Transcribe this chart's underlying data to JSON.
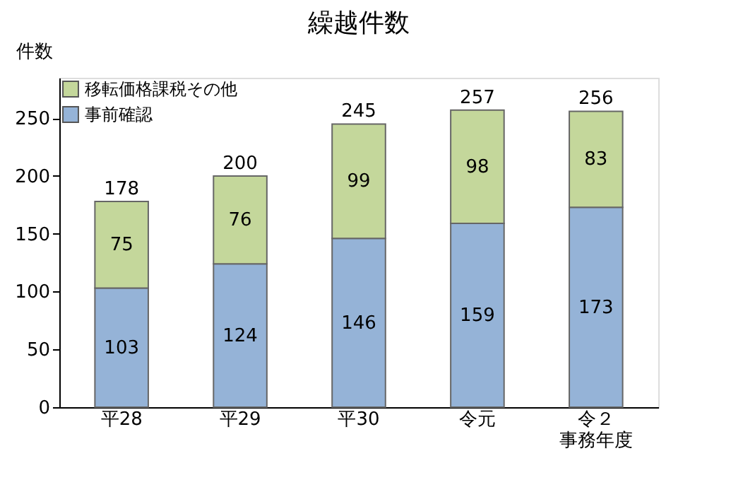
{
  "chart_data": {
    "type": "bar",
    "title": "繰越件数",
    "ylabel": "件数",
    "categories": [
      "平28",
      "平29",
      "平30",
      "令元",
      "令２事務年度"
    ],
    "stacked": true,
    "series": [
      {
        "name": "事前確認",
        "color": "#95b3d7",
        "values": [
          103,
          124,
          146,
          159,
          173
        ]
      },
      {
        "name": "移転価格課税その他",
        "color": "#c4d79b",
        "values": [
          75,
          76,
          99,
          98,
          83
        ]
      }
    ],
    "totals": [
      "178",
      "200",
      "245",
      "257",
      "256"
    ],
    "data_labels": true,
    "ylim": [
      0,
      285
    ],
    "yticks": [
      0,
      50,
      100,
      150,
      200,
      250
    ],
    "grid": false,
    "legend": "top left"
  }
}
